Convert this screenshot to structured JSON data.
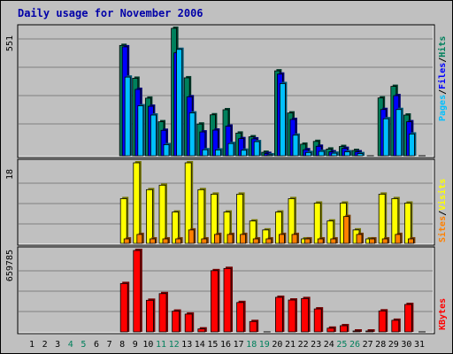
{
  "title": "Daily usage for November 2006",
  "colors": {
    "hits": "#00805c",
    "files": "#0000ff",
    "pages": "#00c0ff",
    "visits": "#ffff00",
    "sites": "#ff8000",
    "kbytes": "#ff0000",
    "panel_bg": "#c0c0c0",
    "grid": "#808080",
    "day_weekday": "#000000",
    "day_weekend": "#00805c"
  },
  "chart_data": [
    {
      "type": "bar",
      "panel": "top",
      "y_max_label": "551",
      "legend": [
        "Pages",
        "/",
        "Files",
        "/",
        "Hits"
      ],
      "ylim": [
        0,
        551
      ],
      "categories": [
        "1",
        "2",
        "3",
        "4",
        "5",
        "6",
        "7",
        "8",
        "9",
        "10",
        "11",
        "12",
        "13",
        "14",
        "15",
        "16",
        "17",
        "18",
        "19",
        "20",
        "21",
        "22",
        "23",
        "24",
        "25",
        "26",
        "27",
        "28",
        "29",
        "30",
        "31"
      ],
      "series": [
        {
          "name": "Hits",
          "values": [
            0,
            0,
            0,
            0,
            0,
            0,
            0,
            477,
            335,
            249,
            147,
            551,
            337,
            137,
            177,
            199,
            98,
            82,
            15,
            367,
            185,
            50,
            62,
            29,
            40,
            23,
            0,
            250,
            300,
            176,
            0
          ]
        },
        {
          "name": "Files",
          "values": [
            0,
            0,
            0,
            0,
            0,
            0,
            0,
            471,
            287,
            214,
            110,
            445,
            255,
            103,
            111,
            128,
            74,
            73,
            10,
            353,
            157,
            26,
            41,
            17,
            32,
            17,
            0,
            200,
            260,
            147,
            0
          ]
        },
        {
          "name": "Pages",
          "values": [
            0,
            0,
            0,
            0,
            0,
            0,
            0,
            340,
            216,
            176,
            48,
            460,
            185,
            26,
            25,
            53,
            24,
            61,
            4,
            312,
            89,
            14,
            19,
            11,
            17,
            9,
            0,
            160,
            200,
            94,
            0
          ]
        }
      ]
    },
    {
      "type": "bar",
      "panel": "middle",
      "y_max_label": "18",
      "legend": [
        "Sites",
        "/",
        "Visits"
      ],
      "ylim": [
        0,
        18
      ],
      "categories": [
        "1",
        "2",
        "3",
        "4",
        "5",
        "6",
        "7",
        "8",
        "9",
        "10",
        "11",
        "12",
        "13",
        "14",
        "15",
        "16",
        "17",
        "18",
        "19",
        "20",
        "21",
        "22",
        "23",
        "24",
        "25",
        "26",
        "27",
        "28",
        "29",
        "30",
        "31"
      ],
      "series": [
        {
          "name": "Visits",
          "values": [
            0,
            0,
            0,
            0,
            0,
            0,
            0,
            10,
            18,
            12,
            13,
            7,
            18,
            12,
            11,
            7,
            11,
            5,
            3,
            7,
            10,
            1,
            9,
            5,
            9,
            3,
            1,
            11,
            10,
            9,
            0
          ]
        },
        {
          "name": "Sites",
          "values": [
            0,
            0,
            0,
            0,
            0,
            0,
            0,
            1,
            2,
            1,
            1,
            1,
            3,
            1,
            2,
            2,
            2,
            1,
            1,
            2,
            2,
            1,
            1,
            1,
            6,
            2,
            1,
            1,
            2,
            1,
            0
          ]
        }
      ]
    },
    {
      "type": "bar",
      "panel": "bottom",
      "y_max_label": "659785",
      "legend": [
        "KBytes"
      ],
      "ylim": [
        0,
        659785
      ],
      "categories": [
        "1",
        "2",
        "3",
        "4",
        "5",
        "6",
        "7",
        "8",
        "9",
        "10",
        "11",
        "12",
        "13",
        "14",
        "15",
        "16",
        "17",
        "18",
        "19",
        "20",
        "21",
        "22",
        "23",
        "24",
        "25",
        "26",
        "27",
        "28",
        "29",
        "30",
        "31"
      ],
      "series": [
        {
          "name": "KBytes",
          "values": [
            0,
            0,
            0,
            0,
            0,
            0,
            0,
            392000,
            659785,
            256000,
            310000,
            168000,
            144000,
            24000,
            496000,
            514000,
            238000,
            84000,
            0,
            280000,
            258000,
            270000,
            186000,
            30000,
            50000,
            6000,
            6000,
            170000,
            94000,
            222000,
            0
          ]
        }
      ]
    }
  ],
  "day_labels": [
    "1",
    "2",
    "3",
    "4",
    "5",
    "6",
    "7",
    "8",
    "9",
    "10",
    "11",
    "12",
    "13",
    "14",
    "15",
    "16",
    "17",
    "18",
    "19",
    "20",
    "21",
    "22",
    "23",
    "24",
    "25",
    "26",
    "27",
    "28",
    "29",
    "30",
    "31"
  ],
  "weekend_days": [
    "4",
    "5",
    "11",
    "12",
    "18",
    "19",
    "25",
    "26"
  ]
}
